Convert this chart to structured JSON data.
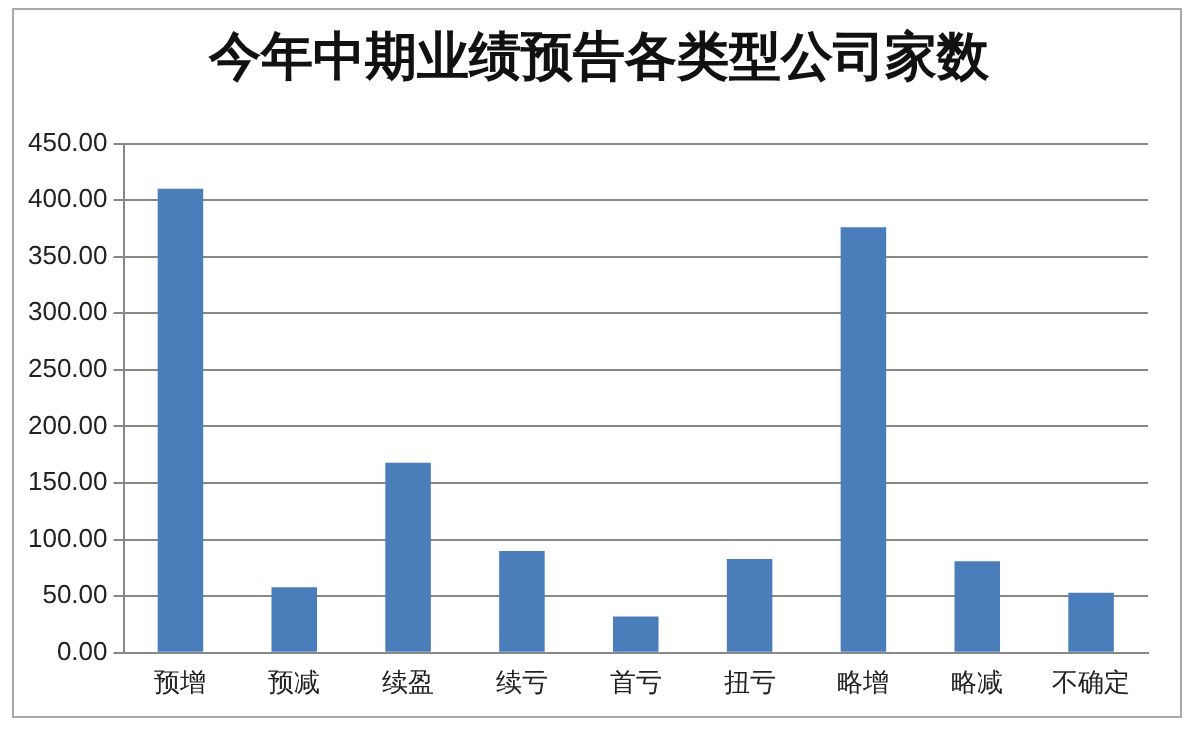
{
  "chart_data": {
    "type": "bar",
    "title": "今年中期业绩预告各类型公司家数",
    "categories": [
      "预增",
      "预减",
      "续盈",
      "续亏",
      "首亏",
      "扭亏",
      "略增",
      "略减",
      "不确定"
    ],
    "values": [
      410,
      58,
      168,
      90,
      32,
      83,
      376,
      81,
      53
    ],
    "color": "#4a7ebb",
    "ylim": [
      0,
      450
    ],
    "yticks": [
      {
        "value": 0,
        "label": "0.00"
      },
      {
        "value": 50,
        "label": "50.00"
      },
      {
        "value": 100,
        "label": "100.00"
      },
      {
        "value": 150,
        "label": "150.00"
      },
      {
        "value": 200,
        "label": "200.00"
      },
      {
        "value": 250,
        "label": "250.00"
      },
      {
        "value": 300,
        "label": "300.00"
      },
      {
        "value": 350,
        "label": "350.00"
      },
      {
        "value": 400,
        "label": "400.00"
      },
      {
        "value": 450,
        "label": "450.00"
      }
    ],
    "grid": "y",
    "legend": false
  }
}
